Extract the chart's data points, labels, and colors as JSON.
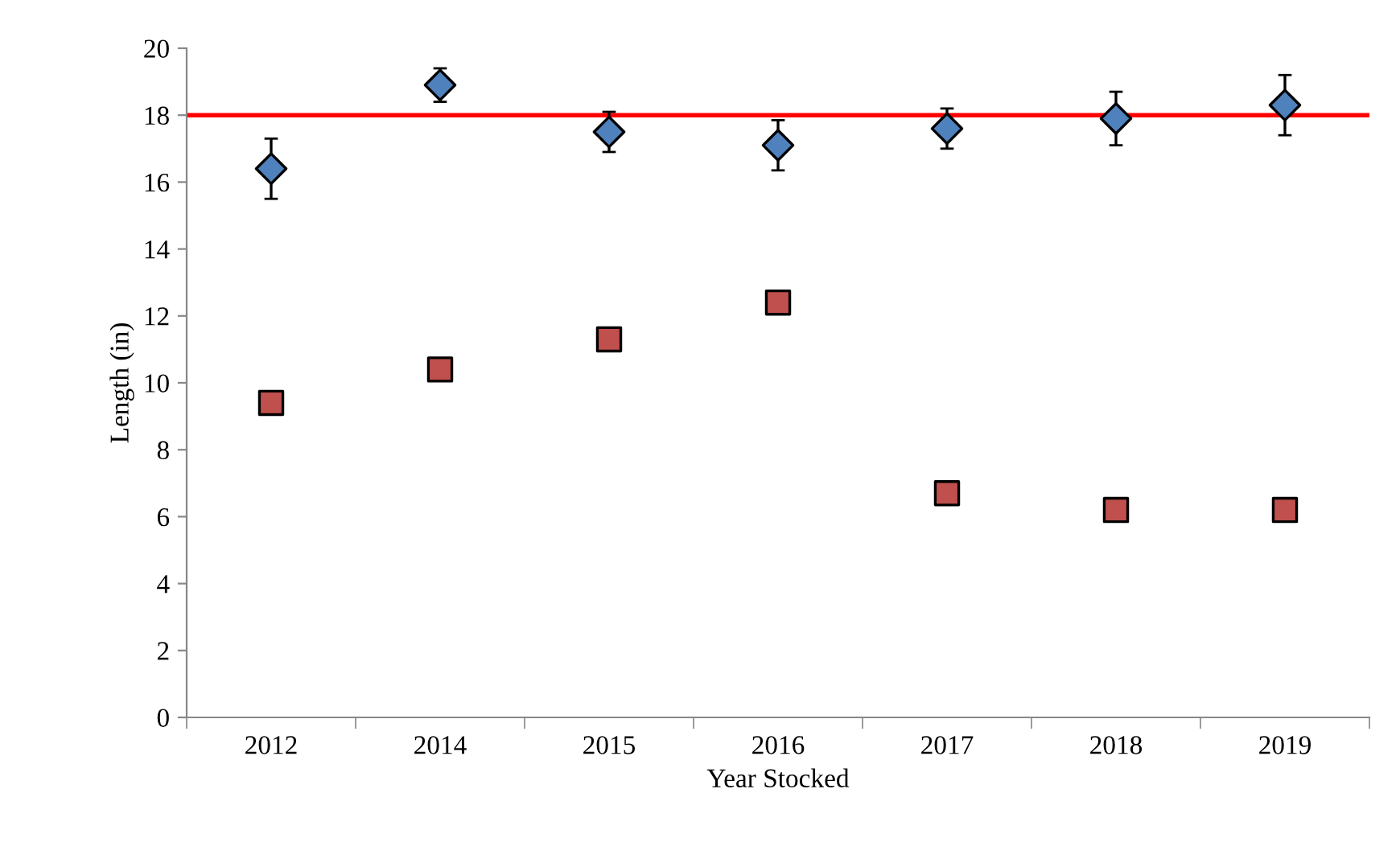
{
  "chart_data": {
    "type": "scatter",
    "xlabel": "Year Stocked",
    "ylabel": "Length (in)",
    "categories": [
      "2012",
      "2014",
      "2015",
      "2016",
      "2017",
      "2018",
      "2019"
    ],
    "series": [
      {
        "color": "#4f81bd",
        "marker": "diamond",
        "values": [
          16.4,
          18.9,
          17.5,
          17.1,
          17.6,
          17.9,
          18.3
        ],
        "errors": [
          0.9,
          0.5,
          0.6,
          0.75,
          0.6,
          0.8,
          0.9
        ]
      },
      {
        "color": "#c0504d",
        "marker": "square",
        "values": [
          9.4,
          10.4,
          11.3,
          12.4,
          6.7,
          6.2,
          6.2
        ]
      }
    ],
    "ylim": [
      0,
      20
    ],
    "yticks": [
      0,
      2,
      4,
      6,
      8,
      10,
      12,
      14,
      16,
      18,
      20
    ],
    "ref_lines": [
      {
        "axis": "y",
        "value": 18,
        "color": "#ff0000",
        "line_style": "solid"
      }
    ],
    "grid": false,
    "legend": false
  }
}
